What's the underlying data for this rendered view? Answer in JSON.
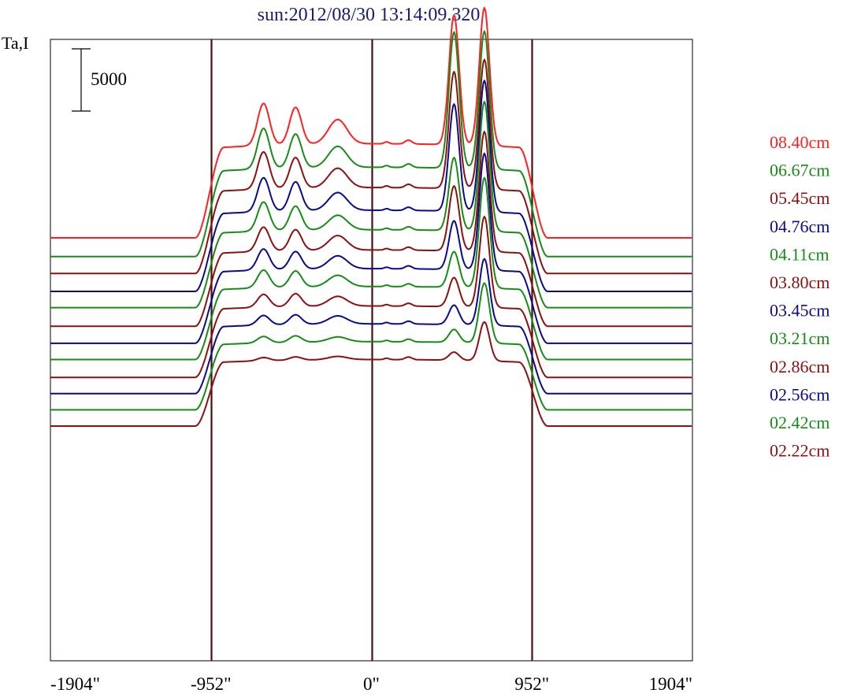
{
  "chart_data": {
    "type": "line",
    "title": "sun:2012/08/30 13:14:09.320",
    "ylabel": "Ta,I",
    "xlabel": "",
    "x_ticks": [
      "-1904\"",
      "-952\"",
      "0\"",
      "952\"",
      "1904\""
    ],
    "x_tick_values": [
      -1904,
      -952,
      0,
      952,
      1904
    ],
    "xlim": [
      -1904,
      1904
    ],
    "vertical_lines_at": [
      -952,
      0,
      952
    ],
    "scale_bar": {
      "label": "5000",
      "value": 5000
    },
    "grid": false,
    "legend_placement": "right",
    "profile_shape": {
      "limb_arcsec": 952,
      "left_peaks_arcsec": [
        -640,
        -450,
        -200
      ],
      "right_peaks_arcsec": [
        490,
        670
      ]
    },
    "series": [
      {
        "name": "08.40cm",
        "color": "#ff2020",
        "baseline": 0,
        "disk_level": 5800,
        "left_peaks": [
          2600,
          2300,
          1500
        ],
        "right_peaks": [
          8000,
          8500
        ]
      },
      {
        "name": "06.67cm",
        "color": "#168c16",
        "baseline": -1150,
        "disk_level": 5500,
        "left_peaks": [
          2500,
          2100,
          1300
        ],
        "right_peaks": [
          8400,
          8500
        ]
      },
      {
        "name": "05.45cm",
        "color": "#8c1010",
        "baseline": -2200,
        "disk_level": 5300,
        "left_peaks": [
          2300,
          1900,
          1200
        ],
        "right_peaks": [
          7200,
          8000
        ]
      },
      {
        "name": "04.76cm",
        "color": "#0a0a8c",
        "baseline": -3300,
        "disk_level": 5000,
        "left_peaks": [
          2100,
          1800,
          1100
        ],
        "right_peaks": [
          6600,
          8100
        ]
      },
      {
        "name": "04.11cm",
        "color": "#168c16",
        "baseline": -4300,
        "disk_level": 4800,
        "left_peaks": [
          1800,
          1500,
          900
        ],
        "right_peaks": [
          4500,
          8000
        ]
      },
      {
        "name": "03.80cm",
        "color": "#8c1010",
        "baseline": -5450,
        "disk_level": 4700,
        "left_peaks": [
          1500,
          1300,
          900
        ],
        "right_peaks": [
          4000,
          7400
        ]
      },
      {
        "name": "03.45cm",
        "color": "#0a0a8c",
        "baseline": -6500,
        "disk_level": 4600,
        "left_peaks": [
          1300,
          1100,
          800
        ],
        "right_peaks": [
          3000,
          7200
        ]
      },
      {
        "name": "03.21cm",
        "color": "#168c16",
        "baseline": -7500,
        "disk_level": 4500,
        "left_peaks": [
          1100,
          1000,
          700
        ],
        "right_peaks": [
          2200,
          6800
        ]
      },
      {
        "name": "02.86cm",
        "color": "#8c1010",
        "baseline": -8600,
        "disk_level": 4400,
        "left_peaks": [
          800,
          800,
          600
        ],
        "right_peaks": [
          1800,
          5600
        ]
      },
      {
        "name": "02.56cm",
        "color": "#0a0a8c",
        "baseline": -9600,
        "disk_level": 4300,
        "left_peaks": [
          600,
          600,
          500
        ],
        "right_peaks": [
          1200,
          4100
        ]
      },
      {
        "name": "02.42cm",
        "color": "#168c16",
        "baseline": -10600,
        "disk_level": 4200,
        "left_peaks": [
          400,
          400,
          300
        ],
        "right_peaks": [
          800,
          3700
        ]
      },
      {
        "name": "02.22cm",
        "color": "#8c1010",
        "baseline": -11600,
        "disk_level": 4100,
        "left_peaks": [
          200,
          200,
          200
        ],
        "right_peaks": [
          500,
          2400
        ]
      }
    ]
  }
}
